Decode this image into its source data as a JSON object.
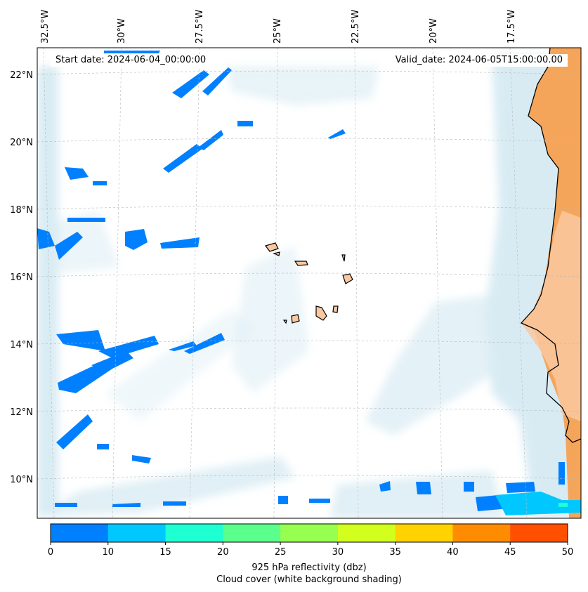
{
  "info": {
    "start_date": "Start date: 2024-06-04_00:00:00",
    "valid_date": "Valid_date: 2024-06-05T15:00:00.00"
  },
  "lon_ticks": [
    "32.5°W",
    "30°W",
    "27.5°W",
    "25°W",
    "22.5°W",
    "20°W",
    "17.5°W"
  ],
  "lat_ticks": [
    "22°N",
    "20°N",
    "18°N",
    "16°N",
    "14°N",
    "12°N",
    "10°N"
  ],
  "colorbar": {
    "ticks": [
      "0",
      "10",
      "15",
      "20",
      "25",
      "30",
      "35",
      "40",
      "45",
      "50"
    ],
    "colors": [
      "#0080ff",
      "#00c8ff",
      "#1effd2",
      "#5aff8c",
      "#96ff50",
      "#d2ff1e",
      "#ffd200",
      "#ff8c00",
      "#ff5000"
    ],
    "label": "925 hPa reflectivity (dbz)",
    "sublabel": "Cloud cover (white background shading)"
  },
  "colors": {
    "land_sahara": "#f5a55a",
    "land_coast": "#f9c8a0",
    "cloud_shade": "#b9dcea",
    "reflectivity_low": "#0080ff",
    "reflectivity_mid": "#00c8ff"
  }
}
